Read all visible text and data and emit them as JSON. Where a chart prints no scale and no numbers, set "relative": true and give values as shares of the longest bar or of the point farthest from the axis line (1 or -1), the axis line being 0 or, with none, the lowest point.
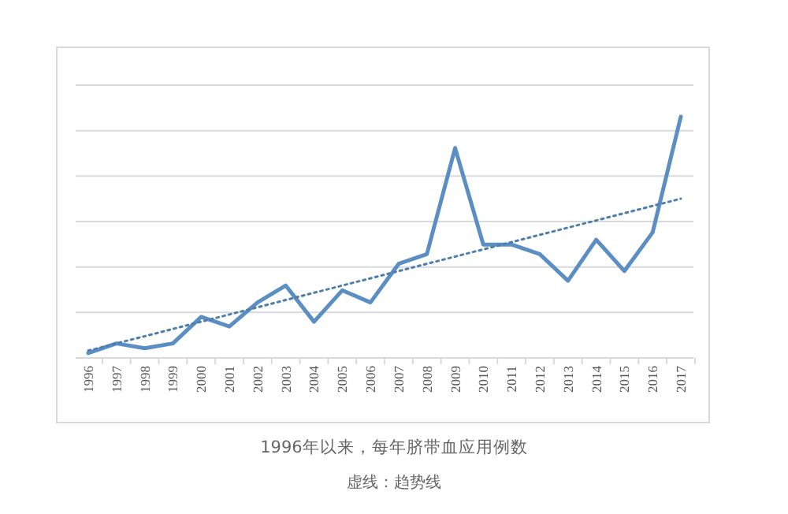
{
  "chart_data": {
    "type": "line",
    "title": "1996年以来，每年脐带血应用例数",
    "annotations": [
      "虚线：趋势线"
    ],
    "relative": true,
    "grid": true,
    "categories": [
      "1996",
      "1997",
      "1998",
      "1999",
      "2000",
      "2001",
      "2002",
      "2003",
      "2004",
      "2005",
      "2006",
      "2007",
      "2008",
      "2009",
      "2010",
      "2011",
      "2012",
      "2013",
      "2014",
      "2015",
      "2016",
      "2017"
    ],
    "series": [
      {
        "color": "#5b8fc3",
        "line_style": "solid",
        "values": [
          0.02,
          0.06,
          0.04,
          0.06,
          0.17,
          0.13,
          0.23,
          0.3,
          0.15,
          0.28,
          0.23,
          0.39,
          0.43,
          0.87,
          0.47,
          0.47,
          0.43,
          0.32,
          0.49,
          0.36,
          0.52,
          1
        ]
      },
      {
        "type": "line",
        "color": "#4d7fae",
        "line_style": "dotted",
        "values": [
          0.03,
          0.06,
          0.09,
          0.12,
          0.15,
          0.18,
          0.21,
          0.24,
          0.27,
          0.3,
          0.33,
          0.36,
          0.39,
          0.42,
          0.45,
          0.48,
          0.51,
          0.54,
          0.57,
          0.6,
          0.63,
          0.66
        ]
      }
    ]
  }
}
